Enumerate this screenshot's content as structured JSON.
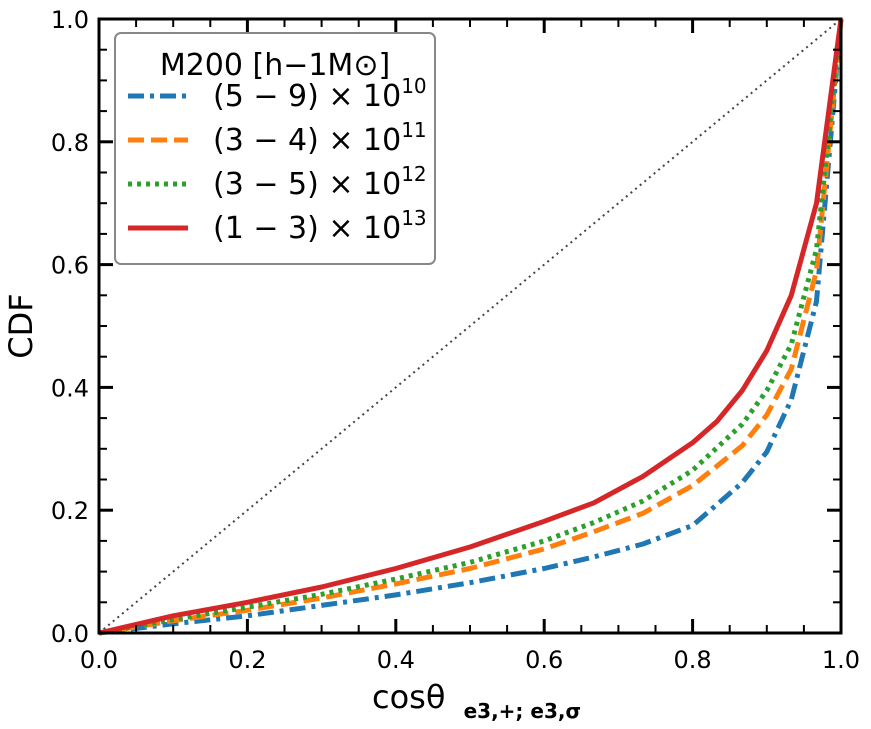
{
  "chart_data": {
    "type": "line",
    "title": "",
    "xlabel": "cosθ",
    "xlabel_subscript": "e3,+; e3,σ",
    "ylabel": "CDF",
    "xlim": [
      0.0,
      1.0
    ],
    "ylim": [
      0.0,
      1.0
    ],
    "grid": false,
    "x_ticks": [
      "0.0",
      "0.2",
      "0.4",
      "0.6",
      "0.8",
      "1.0"
    ],
    "y_ticks": [
      "0.0",
      "0.2",
      "0.4",
      "0.6",
      "0.8",
      "1.0"
    ],
    "legend": {
      "placement": "upper-left",
      "title": "M200 [h−1M⊙]"
    },
    "reference_line": {
      "style": "dotted",
      "color": "#444444",
      "x": [
        0,
        1
      ],
      "y": [
        0,
        1
      ]
    },
    "series": [
      {
        "name": "(5 − 9) × 10^10",
        "label_base": "(5 − 9) × 10",
        "label_exp": "10",
        "color": "#1f77b4",
        "dash": "dashdot",
        "x": [
          0,
          0.1,
          0.2,
          0.3,
          0.4,
          0.5,
          0.6,
          0.667,
          0.733,
          0.8,
          0.867,
          0.9,
          0.933,
          0.967,
          1.0
        ],
        "y": [
          0,
          0.015,
          0.028,
          0.045,
          0.062,
          0.082,
          0.105,
          0.124,
          0.145,
          0.175,
          0.245,
          0.295,
          0.38,
          0.54,
          1.0
        ]
      },
      {
        "name": "(3 − 4) × 10^11",
        "label_base": "(3 − 4) × 10",
        "label_exp": "11",
        "color": "#ff7f0e",
        "dash": "dashed",
        "x": [
          0,
          0.1,
          0.2,
          0.3,
          0.4,
          0.5,
          0.6,
          0.667,
          0.733,
          0.8,
          0.867,
          0.9,
          0.933,
          0.967,
          1.0
        ],
        "y": [
          0,
          0.02,
          0.037,
          0.057,
          0.08,
          0.105,
          0.137,
          0.165,
          0.195,
          0.24,
          0.305,
          0.355,
          0.43,
          0.59,
          1.0
        ]
      },
      {
        "name": "(3 − 5) × 10^12",
        "label_base": "(3 − 5) × 10",
        "label_exp": "12",
        "color": "#2ca02c",
        "dash": "dotted",
        "x": [
          0,
          0.1,
          0.2,
          0.3,
          0.4,
          0.5,
          0.6,
          0.667,
          0.733,
          0.8,
          0.867,
          0.9,
          0.933,
          0.967,
          1.0
        ],
        "y": [
          0,
          0.022,
          0.042,
          0.063,
          0.088,
          0.115,
          0.15,
          0.18,
          0.215,
          0.265,
          0.34,
          0.395,
          0.47,
          0.625,
          1.0
        ]
      },
      {
        "name": "(1 − 3) × 10^13",
        "label_base": "(1 − 3) × 10",
        "label_exp": "13",
        "color": "#d62728",
        "dash": "solid",
        "x": [
          0,
          0.1,
          0.2,
          0.3,
          0.4,
          0.5,
          0.6,
          0.667,
          0.733,
          0.8,
          0.833,
          0.867,
          0.9,
          0.933,
          0.967,
          1.0
        ],
        "y": [
          0,
          0.028,
          0.05,
          0.075,
          0.105,
          0.14,
          0.182,
          0.212,
          0.255,
          0.31,
          0.345,
          0.395,
          0.46,
          0.55,
          0.7,
          1.0
        ]
      }
    ]
  }
}
